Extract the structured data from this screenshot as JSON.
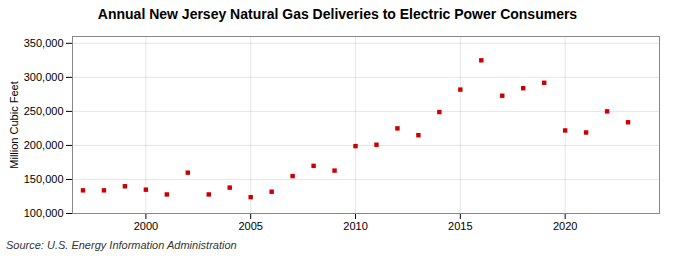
{
  "chart_data": {
    "type": "scatter",
    "title": "Annual New Jersey Natural Gas Deliveries to Electric Power Consumers",
    "ylabel": "Million Cubic Feet",
    "source": "Source: U.S. Energy Information Administration",
    "x": [
      1997,
      1998,
      1999,
      2000,
      2001,
      2002,
      2003,
      2004,
      2005,
      2006,
      2007,
      2008,
      2009,
      2010,
      2011,
      2012,
      2013,
      2014,
      2015,
      2016,
      2017,
      2018,
      2019,
      2020,
      2021,
      2022,
      2023
    ],
    "values": [
      134000,
      134000,
      140000,
      135000,
      128000,
      160000,
      128000,
      138000,
      124000,
      132000,
      155000,
      170000,
      163000,
      199000,
      201000,
      225000,
      215000,
      249000,
      282000,
      325000,
      273000,
      284000,
      292000,
      222000,
      219000,
      250000,
      234000
    ],
    "color": "#cc0000",
    "marker": "square",
    "xlim": [
      1996.5,
      2024.5
    ],
    "xticks": [
      2000,
      2005,
      2010,
      2015,
      2020
    ],
    "ylim": [
      100000,
      360000
    ],
    "yticks": [
      {
        "value": 100000,
        "label": "100,000"
      },
      {
        "value": 150000,
        "label": "150,000"
      },
      {
        "value": 200000,
        "label": "200,000"
      },
      {
        "value": 250000,
        "label": "250,000"
      },
      {
        "value": 300000,
        "label": "300,000"
      },
      {
        "value": 350000,
        "label": "350,000"
      }
    ],
    "grid": true
  }
}
